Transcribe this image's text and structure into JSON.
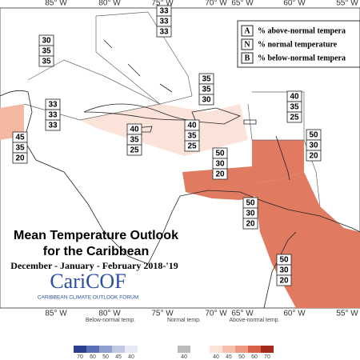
{
  "map": {
    "longitudes": [
      "85° W",
      "80° W",
      "75° W",
      "70° W",
      "65° W",
      "60° W",
      "55° W"
    ]
  },
  "key": {
    "rows": [
      {
        "letter": "A",
        "text": "% above-normal tempera"
      },
      {
        "letter": "N",
        "text": "% normal temperature"
      },
      {
        "letter": "B",
        "text": "% below-normal tempera"
      }
    ]
  },
  "title": {
    "line1": "Mean Temperature Outlook",
    "line2": "for the Caribbean",
    "season": "December - January - February 2018-'19"
  },
  "logo": {
    "name": "CariCOF",
    "subtitle": "CARIBBEAN CLIMATE OUTLOOK FORUM"
  },
  "regions": [
    {
      "values": [
        33,
        33,
        33
      ]
    },
    {
      "values": [
        30,
        35,
        35
      ]
    },
    {
      "values": [
        33,
        33,
        33
      ]
    },
    {
      "values": [
        35,
        35,
        30
      ]
    },
    {
      "values": [
        40,
        35,
        25
      ]
    },
    {
      "values": [
        40,
        35,
        25
      ]
    },
    {
      "values": [
        40,
        35,
        25
      ]
    },
    {
      "values": [
        45,
        35,
        20
      ]
    },
    {
      "values": [
        50,
        30,
        20
      ]
    },
    {
      "values": [
        50,
        30,
        20
      ]
    },
    {
      "values": [
        50,
        30,
        20
      ]
    },
    {
      "values": [
        50,
        30,
        20
      ]
    }
  ],
  "legend": {
    "below": "Below-normal temp.",
    "normal": "Normal temp.",
    "above": "Above-normal temp.",
    "below_ticks": [
      70,
      60,
      50,
      45,
      40
    ],
    "normal_ticks": [
      40
    ],
    "above_ticks": [
      40,
      45,
      50,
      60,
      70
    ]
  }
}
